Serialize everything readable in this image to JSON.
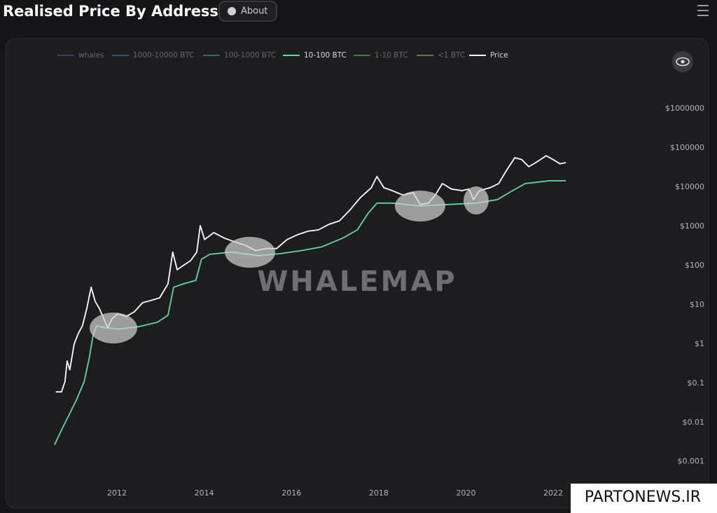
{
  "header": {
    "title": "Realised Price By Address",
    "button": "About"
  },
  "overlay": "PARTONEWS.IR",
  "chart_data": {
    "type": "line",
    "watermark": "WHALEMAP",
    "log_y": true,
    "grid": false,
    "xlim": [
      2010.5,
      2022.4
    ],
    "xticks": [
      2012,
      2014,
      2016,
      2018,
      2020,
      2022
    ],
    "ylim": [
      0.0003,
      10000000
    ],
    "yticks": [
      {
        "value": 0.001,
        "label": "$0.001"
      },
      {
        "value": 0.01,
        "label": "$0.01"
      },
      {
        "value": 0.1,
        "label": "$0.1"
      },
      {
        "value": 1,
        "label": "$1"
      },
      {
        "value": 10,
        "label": "$10"
      },
      {
        "value": 100,
        "label": "$100"
      },
      {
        "value": 1000,
        "label": "$1000"
      },
      {
        "value": 10000,
        "label": "$10000"
      },
      {
        "value": 100000,
        "label": "$100000"
      },
      {
        "value": 1000000,
        "label": "$1000000"
      }
    ],
    "series": [
      {
        "name": "whales",
        "color": "#3b3a6b",
        "visible": false
      },
      {
        "name": "1000-10000 BTC",
        "color": "#2d5b6b",
        "visible": false
      },
      {
        "name": "100-1000 BTC",
        "color": "#2f6b5c",
        "visible": false
      },
      {
        "name": "10-100 BTC",
        "color": "#62d69d",
        "visible": true,
        "x": [
          2010.57,
          2010.76,
          2010.92,
          2011.08,
          2011.25,
          2011.37,
          2011.45,
          2011.53,
          2011.73,
          2012.05,
          2012.53,
          2012.93,
          2013.17,
          2013.3,
          2013.52,
          2013.81,
          2013.94,
          2014.13,
          2014.62,
          2015.26,
          2015.74,
          2016.22,
          2016.7,
          2017.18,
          2017.51,
          2017.75,
          2017.96,
          2018.31,
          2018.95,
          2019.59,
          2020.23,
          2020.72,
          2021.04,
          2021.36,
          2021.92,
          2022.29
        ],
        "values": [
          0.0027,
          0.0075,
          0.017,
          0.039,
          0.11,
          0.46,
          1.6,
          2.9,
          2.6,
          2.4,
          2.8,
          3.6,
          5.4,
          28,
          34,
          42,
          145,
          193,
          220,
          178,
          200,
          240,
          300,
          500,
          810,
          2100,
          3900,
          3900,
          3300,
          3600,
          3900,
          4800,
          7800,
          12300,
          14500,
          14500
        ]
      },
      {
        "name": "1-10 BTC",
        "color": "#3f7a4c",
        "visible": false
      },
      {
        "name": "<1 BTC",
        "color": "#6b6a50",
        "visible": false
      },
      {
        "name": "Price",
        "color": "#ffffff",
        "visible": true,
        "x": [
          2010.6,
          2010.73,
          2010.81,
          2010.86,
          2010.92,
          2011.02,
          2011.12,
          2011.21,
          2011.31,
          2011.41,
          2011.5,
          2011.6,
          2011.7,
          2011.79,
          2011.89,
          2012.02,
          2012.21,
          2012.4,
          2012.59,
          2012.79,
          2012.98,
          2013.17,
          2013.28,
          2013.38,
          2013.52,
          2013.69,
          2013.83,
          2013.91,
          2014.01,
          2014.22,
          2014.46,
          2014.7,
          2014.94,
          2015.18,
          2015.42,
          2015.66,
          2015.9,
          2016.14,
          2016.38,
          2016.62,
          2016.86,
          2017.1,
          2017.34,
          2017.58,
          2017.83,
          2017.96,
          2018.12,
          2018.31,
          2018.55,
          2018.79,
          2018.95,
          2019.14,
          2019.3,
          2019.46,
          2019.67,
          2019.91,
          2020.07,
          2020.17,
          2020.31,
          2020.55,
          2020.75,
          2020.91,
          2021.12,
          2021.28,
          2021.44,
          2021.6,
          2021.84,
          2022.0,
          2022.16,
          2022.29
        ],
        "values": [
          0.06,
          0.06,
          0.11,
          0.37,
          0.22,
          1.0,
          1.9,
          2.9,
          8.1,
          28,
          12.3,
          8,
          4.4,
          2.6,
          4.4,
          5.9,
          5,
          6.6,
          11.3,
          13,
          15,
          34,
          220,
          78,
          100,
          133,
          220,
          1040,
          460,
          690,
          500,
          400,
          330,
          240,
          270,
          270,
          460,
          610,
          750,
          810,
          1120,
          1380,
          2600,
          5400,
          9600,
          18600,
          9600,
          8100,
          6300,
          7200,
          3600,
          3900,
          6300,
          12300,
          8900,
          8100,
          8900,
          4800,
          8100,
          9600,
          12300,
          24600,
          56000,
          50000,
          33000,
          42000,
          63000,
          50000,
          39000,
          42000
        ]
      }
    ]
  }
}
